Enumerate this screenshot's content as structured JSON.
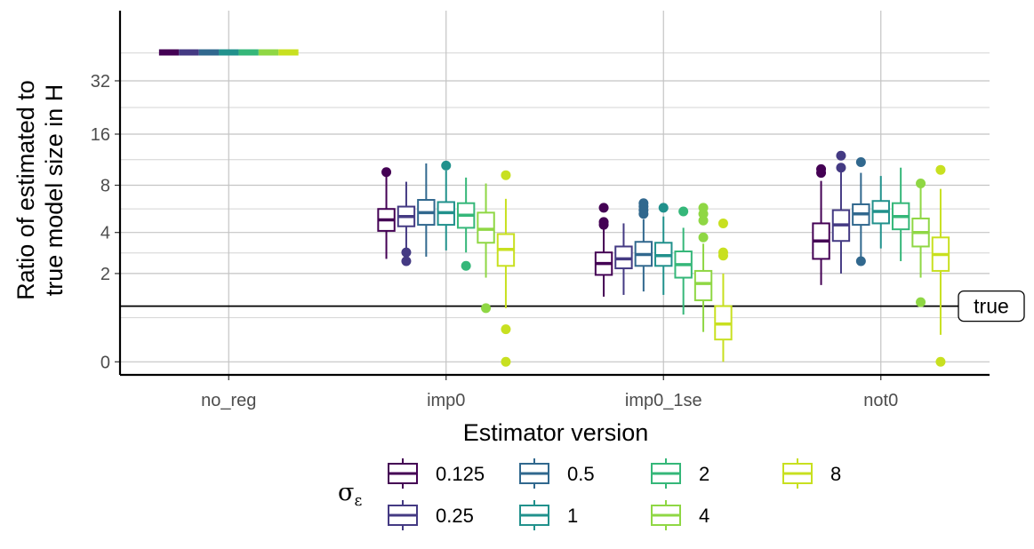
{
  "chart_data": {
    "type": "boxplot",
    "xlabel": "Estimator version",
    "ylabel_line1": "Ratio of estimated to",
    "ylabel_line2": "true model size in H",
    "y_scale": "log2(1+y)",
    "y_ticks": [
      0,
      2,
      4,
      8,
      16,
      32
    ],
    "y_range": [
      -0.15,
      78
    ],
    "categories": [
      "no_reg",
      "imp0",
      "imp0_1se",
      "not0"
    ],
    "legend": {
      "title": "σ",
      "title_sub": "ε",
      "position": "bottom",
      "entries": [
        {
          "label": "0.125",
          "color": "#440154"
        },
        {
          "label": "0.25",
          "color": "#443a83"
        },
        {
          "label": "0.5",
          "color": "#31688e"
        },
        {
          "label": "1",
          "color": "#21918c"
        },
        {
          "label": "2",
          "color": "#35b779"
        },
        {
          "label": "4",
          "color": "#8fd744"
        },
        {
          "label": "8",
          "color": "#c8e020"
        }
      ]
    },
    "reference_line": {
      "value": 1,
      "label": "true"
    },
    "boxes": [
      [
        {
          "min": 46,
          "q1": 46,
          "median": 46,
          "q3": 46,
          "max": 46,
          "outliers": []
        },
        {
          "min": 46,
          "q1": 46,
          "median": 46,
          "q3": 46,
          "max": 46,
          "outliers": []
        },
        {
          "min": 46,
          "q1": 46,
          "median": 46,
          "q3": 46,
          "max": 46,
          "outliers": []
        },
        {
          "min": 46,
          "q1": 46,
          "median": 46,
          "q3": 46,
          "max": 46,
          "outliers": []
        },
        {
          "min": 46,
          "q1": 46,
          "median": 46,
          "q3": 46,
          "max": 46,
          "outliers": []
        },
        {
          "min": 46,
          "q1": 46,
          "median": 46,
          "q3": 46,
          "max": 46,
          "outliers": []
        },
        {
          "min": 46,
          "q1": 46,
          "median": 46,
          "q3": 46,
          "max": 46,
          "outliers": []
        }
      ],
      [
        {
          "min": 2.6,
          "q1": 4.1,
          "median": 4.85,
          "q3": 5.7,
          "max": 9.3,
          "outliers": [
            9.6
          ]
        },
        {
          "min": 3.1,
          "q1": 4.4,
          "median": 5.1,
          "q3": 5.9,
          "max": 8.4,
          "outliers": [
            2.9,
            2.5
          ]
        },
        {
          "min": 2.7,
          "q1": 4.5,
          "median": 5.4,
          "q3": 6.5,
          "max": 10.8,
          "outliers": []
        },
        {
          "min": 3.0,
          "q1": 4.5,
          "median": 5.4,
          "q3": 6.3,
          "max": 9.8,
          "outliers": [
            10.5
          ]
        },
        {
          "min": 2.9,
          "q1": 4.3,
          "median": 5.2,
          "q3": 6.2,
          "max": 8.9,
          "outliers": [
            2.3
          ]
        },
        {
          "min": 1.85,
          "q1": 3.4,
          "median": 4.2,
          "q3": 5.4,
          "max": 8.2,
          "outliers": [
            0.95
          ]
        },
        {
          "min": 0.95,
          "q1": 2.3,
          "median": 3.05,
          "q3": 3.9,
          "max": 6.6,
          "outliers": [
            9.2,
            0.5,
            0.0
          ]
        }
      ],
      [
        {
          "min": 1.25,
          "q1": 1.95,
          "median": 2.4,
          "q3": 2.9,
          "max": 4.2,
          "outliers": [
            5.8,
            4.7,
            4.5
          ]
        },
        {
          "min": 1.3,
          "q1": 2.2,
          "median": 2.6,
          "q3": 3.2,
          "max": 4.6,
          "outliers": []
        },
        {
          "min": 1.4,
          "q1": 2.3,
          "median": 2.8,
          "q3": 3.45,
          "max": 4.9,
          "outliers": [
            6.2,
            5.9,
            5.6,
            5.3
          ]
        },
        {
          "min": 1.3,
          "q1": 2.3,
          "median": 2.75,
          "q3": 3.4,
          "max": 5.1,
          "outliers": [
            5.8
          ]
        },
        {
          "min": 0.8,
          "q1": 1.85,
          "median": 2.35,
          "q3": 2.95,
          "max": 4.3,
          "outliers": [
            5.5
          ]
        },
        {
          "min": 0.45,
          "q1": 1.15,
          "median": 1.65,
          "q3": 2.1,
          "max": 3.35,
          "outliers": [
            5.8,
            5.3,
            4.8,
            3.7
          ]
        },
        {
          "min": 0.0,
          "q1": 0.32,
          "median": 0.6,
          "q3": 1.0,
          "max": 2.0,
          "outliers": [
            4.6,
            2.9,
            2.75
          ]
        }
      ],
      [
        {
          "min": 1.6,
          "q1": 2.6,
          "median": 3.5,
          "q3": 4.6,
          "max": 8.5,
          "outliers": [
            10.0,
            9.5
          ]
        },
        {
          "min": 2.0,
          "q1": 3.5,
          "median": 4.5,
          "q3": 5.6,
          "max": 9.8,
          "outliers": [
            12.0,
            10.2
          ]
        },
        {
          "min": 2.7,
          "q1": 4.5,
          "median": 5.3,
          "q3": 6.1,
          "max": 9.5,
          "outliers": [
            11.0,
            2.5
          ]
        },
        {
          "min": 3.1,
          "q1": 4.6,
          "median": 5.5,
          "q3": 6.4,
          "max": 9.1,
          "outliers": []
        },
        {
          "min": 2.5,
          "q1": 4.2,
          "median": 5.1,
          "q3": 6.2,
          "max": 10.2,
          "outliers": []
        },
        {
          "min": 1.85,
          "q1": 3.2,
          "median": 4.0,
          "q3": 4.95,
          "max": 7.7,
          "outliers": [
            8.2,
            1.1
          ]
        },
        {
          "min": 0.4,
          "q1": 2.1,
          "median": 2.8,
          "q3": 3.7,
          "max": 7.6,
          "outliers": [
            9.9,
            0.0
          ]
        }
      ]
    ]
  }
}
